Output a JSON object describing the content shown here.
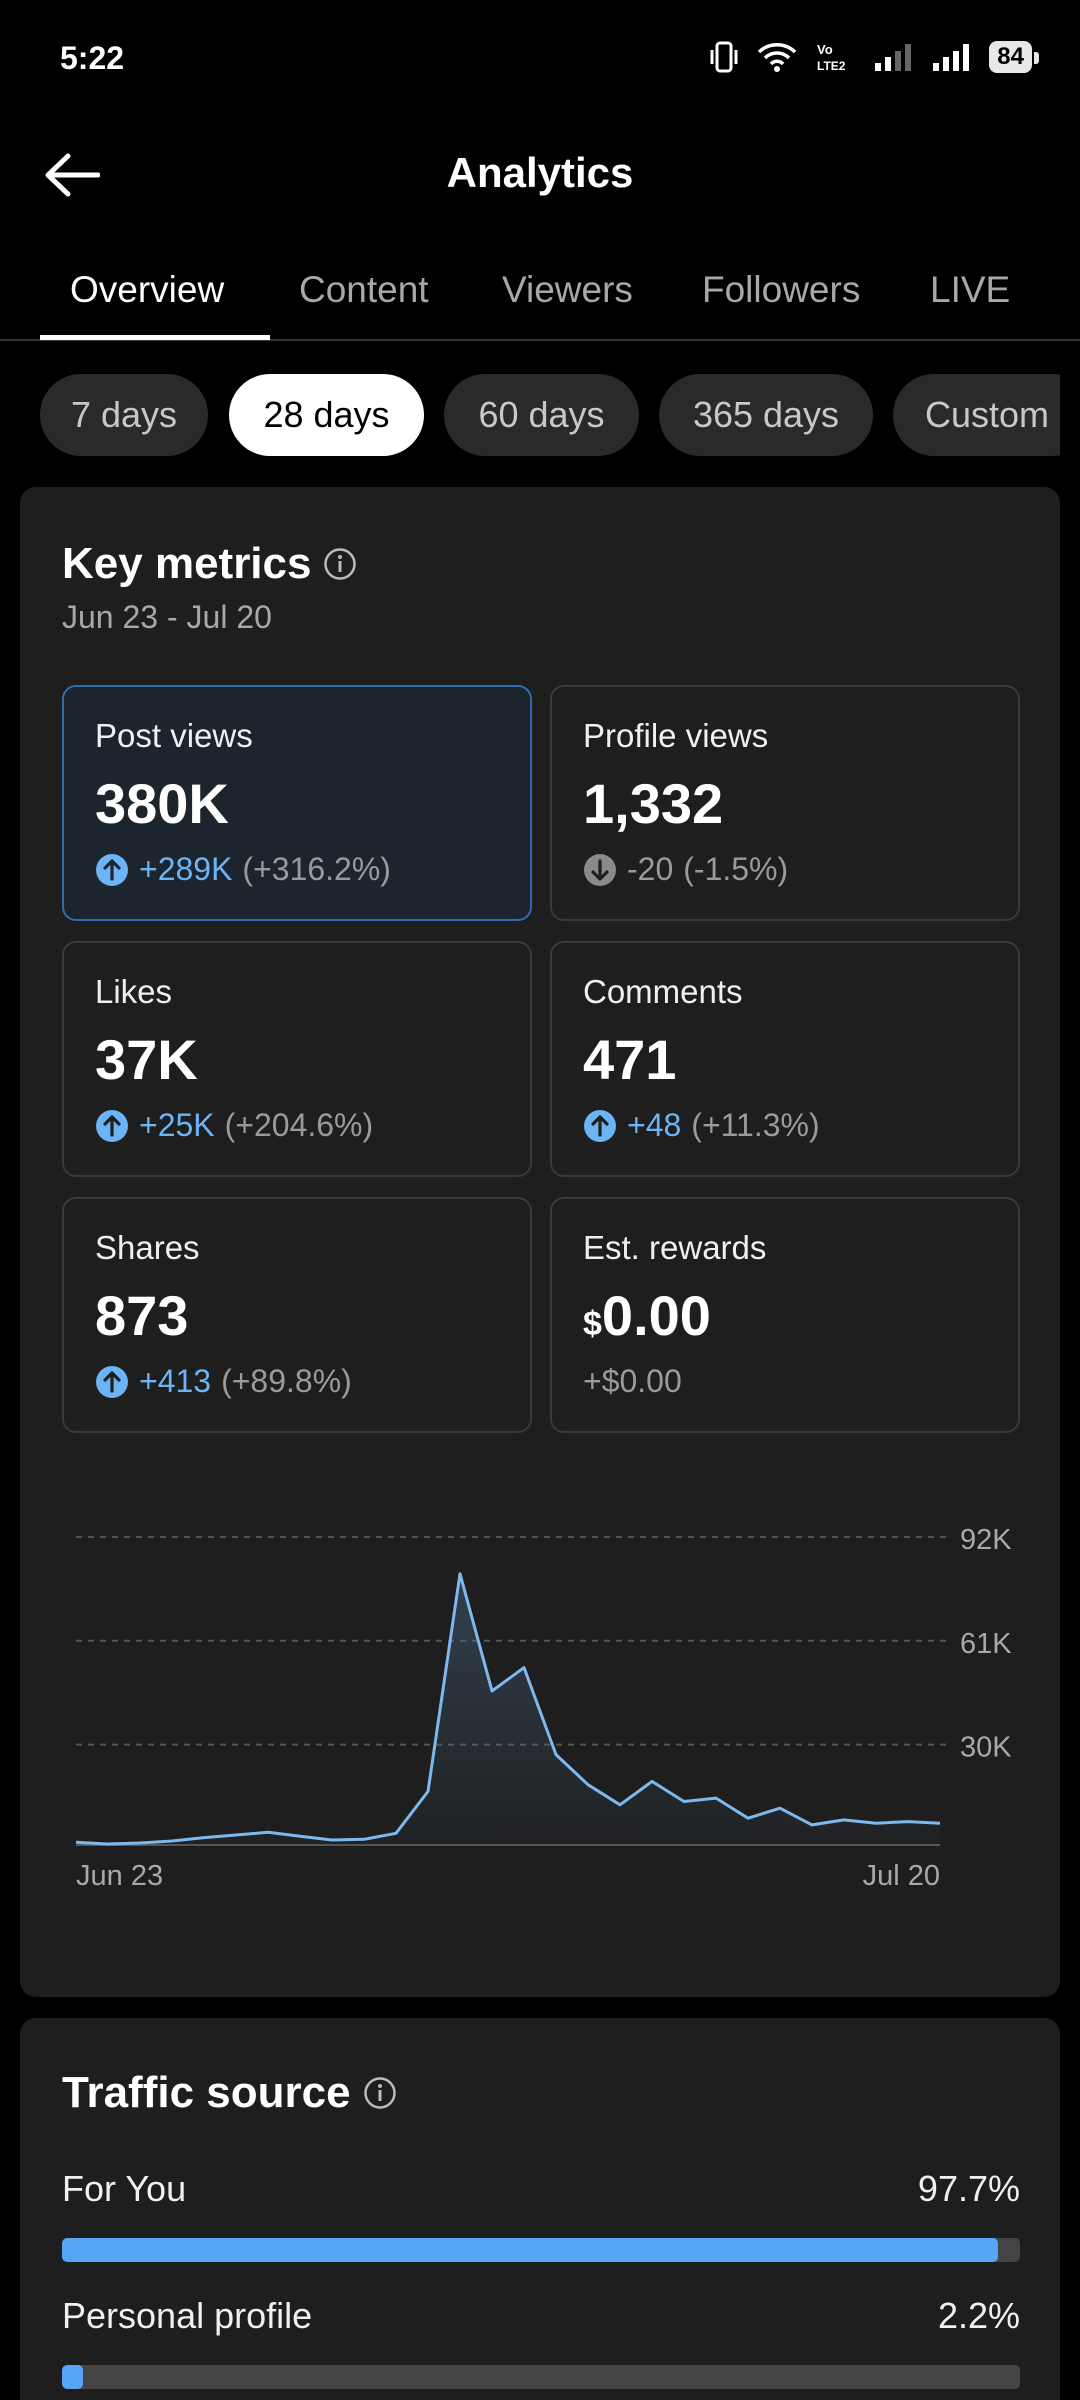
{
  "status": {
    "time": "5:22",
    "battery": "84"
  },
  "header": {
    "title": "Analytics"
  },
  "tabs": [
    "Overview",
    "Content",
    "Viewers",
    "Followers",
    "LIVE"
  ],
  "date_filters": [
    "7 days",
    "28 days",
    "60 days",
    "365 days",
    "Custom"
  ],
  "key_metrics": {
    "title": "Key metrics",
    "date_range": "Jun 23 - Jul 20",
    "items": [
      {
        "label": "Post views",
        "value": "380K",
        "change": "+289K",
        "pct": "(+316.2%)",
        "direction": "up"
      },
      {
        "label": "Profile views",
        "value": "1,332",
        "change": "-20",
        "pct": "(-1.5%)",
        "direction": "down"
      },
      {
        "label": "Likes",
        "value": "37K",
        "change": "+25K",
        "pct": "(+204.6%)",
        "direction": "up"
      },
      {
        "label": "Comments",
        "value": "471",
        "change": "+48",
        "pct": "(+11.3%)",
        "direction": "up"
      },
      {
        "label": "Shares",
        "value": "873",
        "change": "+413",
        "pct": "(+89.8%)",
        "direction": "up"
      },
      {
        "label": "Est. rewards",
        "currency": "$",
        "value": "0.00",
        "change": "+$0.00",
        "pct": "",
        "direction": "none"
      }
    ]
  },
  "chart_data": {
    "type": "area",
    "x": [
      "Jun 23",
      "Jun 24",
      "Jun 25",
      "Jun 26",
      "Jun 27",
      "Jun 28",
      "Jun 29",
      "Jun 30",
      "Jul 1",
      "Jul 2",
      "Jul 3",
      "Jul 4",
      "Jul 5",
      "Jul 6",
      "Jul 7",
      "Jul 8",
      "Jul 9",
      "Jul 10",
      "Jul 11",
      "Jul 12",
      "Jul 13",
      "Jul 14",
      "Jul 15",
      "Jul 16",
      "Jul 17",
      "Jul 18",
      "Jul 19",
      "Jul 20"
    ],
    "values": [
      800,
      300,
      600,
      1200,
      2200,
      3000,
      3800,
      2600,
      1500,
      1700,
      3500,
      16000,
      81000,
      46000,
      53000,
      27000,
      18000,
      12000,
      19000,
      13000,
      14000,
      8000,
      11000,
      6000,
      7500,
      6500,
      7000,
      6500
    ],
    "y_ticks": [
      "92K",
      "61K",
      "30K"
    ],
    "y_tick_values": [
      92000,
      61000,
      30000
    ],
    "x_labels": [
      "Jun 23",
      "Jul 20"
    ],
    "ylim": [
      0,
      92000
    ],
    "grid": true,
    "line_color": "#7db8ee"
  },
  "traffic": {
    "title": "Traffic source",
    "items": [
      {
        "label": "For You",
        "pct": "97.7%",
        "value": 97.7
      },
      {
        "label": "Personal profile",
        "pct": "2.2%",
        "value": 2.2
      }
    ]
  }
}
